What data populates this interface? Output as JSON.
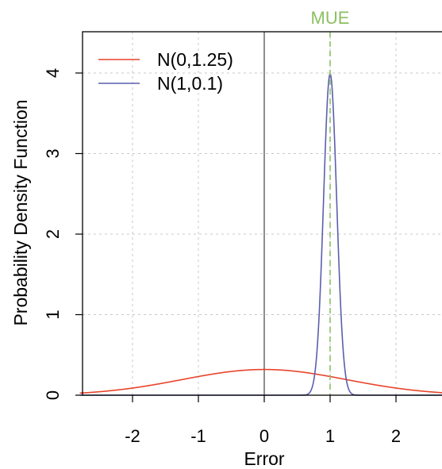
{
  "chart_data": {
    "type": "line",
    "xlabel": "Error",
    "ylabel": "Probability Density Function",
    "xlim": [
      -2.8,
      2.8
    ],
    "ylim": [
      0,
      4.5
    ],
    "x_ticks": [
      "-2",
      "-1",
      "0",
      "1",
      "2"
    ],
    "y_ticks": [
      "0",
      "1",
      "2",
      "3",
      "4"
    ],
    "grid": true,
    "legend_position": "top-left",
    "series": [
      {
        "name": "N(0,1.25)",
        "color": "#e8432b",
        "distribution": "normal",
        "mean": 0,
        "sd": 1.25,
        "peak": 0.32
      },
      {
        "name": "N(1,0.1)",
        "color": "#5a5fad",
        "distribution": "normal",
        "mean": 1,
        "sd": 0.1,
        "peak": 3.99
      }
    ],
    "annotations": [
      {
        "label": "MUE",
        "type": "vertical-line",
        "x": 1,
        "color": "#8cc063",
        "style": "dashed"
      }
    ],
    "reference_lines": [
      {
        "type": "vertical-line",
        "x": 0,
        "color": "#444444"
      }
    ]
  }
}
